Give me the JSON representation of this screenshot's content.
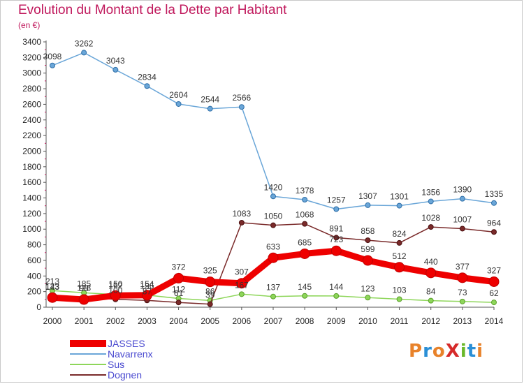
{
  "header": {
    "title": "Evolution du Montant de la Dette par Habitant",
    "subtitle": "(en €)"
  },
  "logo": {
    "text": "ProXiti",
    "colors": [
      "#e8822a",
      "#2a8fd6",
      "#e8822a",
      "#d62a2a",
      "#6ab82a",
      "#2a8fd6",
      "#e8822a"
    ]
  },
  "chart_data": {
    "type": "line",
    "title": "Evolution du Montant de la Dette par Habitant",
    "subtitle": "(en €)",
    "xlabel": "",
    "ylabel": "",
    "x": [
      2000,
      2001,
      2002,
      2003,
      2004,
      2005,
      2006,
      2007,
      2008,
      2009,
      2010,
      2011,
      2012,
      2013,
      2014
    ],
    "ylim": [
      0,
      3400
    ],
    "yticks": [
      0,
      200,
      400,
      600,
      800,
      1000,
      1200,
      1400,
      1600,
      1800,
      2000,
      2200,
      2400,
      2600,
      2800,
      3000,
      3200,
      3400
    ],
    "grid": false,
    "legend_position": "bottom-left",
    "series": [
      {
        "name": "JASSES",
        "color": "#ee0000",
        "stroke_width": 9,
        "values": [
          123,
          98,
          150,
          154,
          372,
          325,
          307,
          633,
          685,
          723,
          599,
          512,
          440,
          377,
          327
        ],
        "labels": [
          "123",
          "98",
          "150",
          "154",
          "372",
          "325",
          "307",
          "633",
          "685",
          "723",
          "599",
          "512",
          "440",
          "377",
          "327"
        ]
      },
      {
        "name": "Navarrenx",
        "color": "#6aa6d8",
        "stroke_width": 1.5,
        "values": [
          3098,
          3262,
          3043,
          2834,
          2604,
          2544,
          2566,
          1420,
          1378,
          1257,
          1307,
          1301,
          1356,
          1390,
          1335
        ],
        "labels": [
          "3098",
          "3262",
          "3043",
          "2834",
          "2604",
          "2544",
          "2566",
          "1420",
          "1378",
          "1257",
          "1307",
          "1301",
          "1356",
          "1390",
          "1335"
        ]
      },
      {
        "name": "Sus",
        "color": "#8ed65a",
        "stroke_width": 1.5,
        "values": [
          213,
          185,
          162,
          156,
          112,
          86,
          167,
          137,
          145,
          144,
          123,
          103,
          84,
          73,
          62
        ],
        "labels": [
          "213",
          "185",
          "162",
          "156",
          "112",
          "86",
          "167",
          "137",
          "145",
          "144",
          "123",
          "103",
          "84",
          "73",
          "62"
        ]
      },
      {
        "name": "Dognen",
        "color": "#7a2a2a",
        "stroke_width": 1.5,
        "values": [
          143,
          128,
          100,
          87,
          61,
          39,
          1083,
          1050,
          1068,
          891,
          858,
          824,
          1028,
          1007,
          964
        ],
        "labels": [
          "143",
          "128",
          "100",
          "87",
          "61",
          "39",
          "1083",
          "1050",
          "1068",
          "891",
          "858",
          "824",
          "1028",
          "1007",
          "964"
        ]
      }
    ]
  }
}
